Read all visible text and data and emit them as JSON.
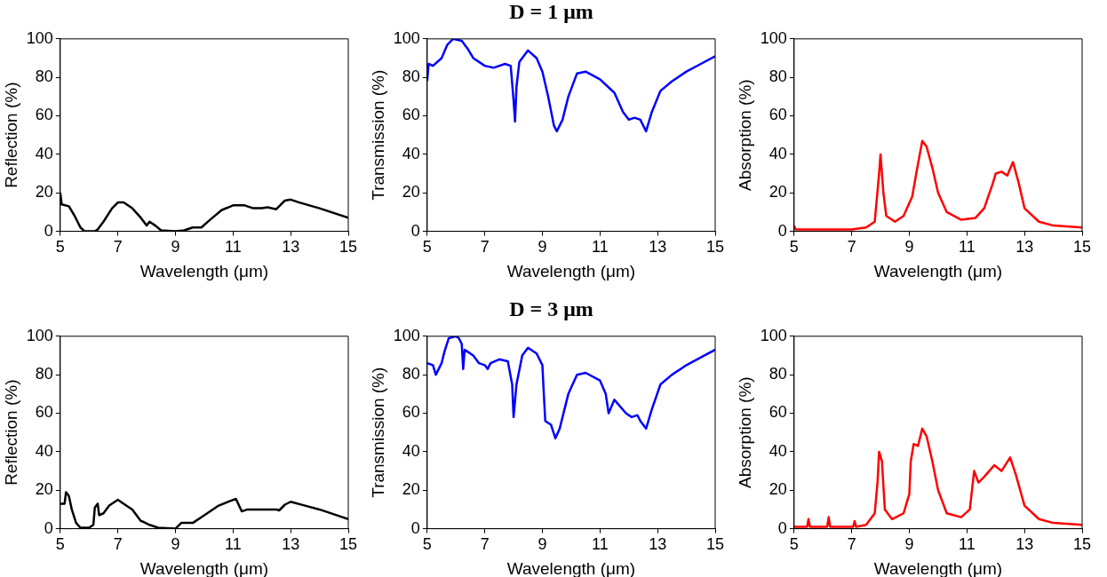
{
  "chart_data": [
    {
      "type": "line",
      "xlabel": "Wavelength (μm)",
      "ylabel": "Reflection (%)",
      "xlim": [
        5,
        15
      ],
      "ylim": [
        0,
        100
      ],
      "xticks": [
        5,
        7,
        9,
        11,
        13,
        15
      ],
      "yticks": [
        0,
        20,
        40,
        60,
        80,
        100
      ],
      "grid": false,
      "series": [
        {
          "color": "#000000",
          "x": [
            5,
            5.05,
            5.3,
            5.5,
            5.7,
            5.85,
            6.2,
            6.3,
            6.5,
            6.8,
            7.0,
            7.2,
            7.5,
            7.8,
            8.0,
            8.1,
            8.3,
            8.5,
            9.0,
            9.3,
            9.6,
            9.9,
            10.2,
            10.6,
            11.0,
            11.4,
            11.7,
            12.0,
            12.2,
            12.5,
            12.8,
            13.0,
            13.3,
            14,
            15
          ],
          "values": [
            20,
            14,
            13,
            8,
            2,
            0,
            0,
            1,
            5,
            12,
            15,
            15,
            12,
            7,
            3,
            5,
            3,
            0.5,
            0,
            0.5,
            2,
            2,
            6,
            11,
            13.5,
            13.5,
            12,
            12,
            12.5,
            11.5,
            16,
            16.5,
            15,
            12,
            7
          ]
        }
      ]
    },
    {
      "type": "line",
      "title": "D = 1 μm",
      "xlabel": "Wavelength (μm)",
      "ylabel": "Transmission (%)",
      "xlim": [
        5,
        15
      ],
      "ylim": [
        0,
        100
      ],
      "xticks": [
        5,
        7,
        9,
        11,
        13,
        15
      ],
      "yticks": [
        0,
        20,
        40,
        60,
        80,
        100
      ],
      "grid": false,
      "series": [
        {
          "color": "#0000ff",
          "x": [
            5,
            5.05,
            5.2,
            5.5,
            5.7,
            5.9,
            6.2,
            6.4,
            6.6,
            7.0,
            7.3,
            7.7,
            7.9,
            8.0,
            8.05,
            8.1,
            8.2,
            8.5,
            8.8,
            9.0,
            9.2,
            9.4,
            9.5,
            9.7,
            9.9,
            10.2,
            10.5,
            11.0,
            11.5,
            11.8,
            12.0,
            12.2,
            12.4,
            12.6,
            12.8,
            13.1,
            13.5,
            14.0,
            14.5,
            15
          ],
          "values": [
            78,
            87,
            86,
            90,
            97,
            100,
            99,
            95,
            90,
            86,
            85,
            87,
            86,
            68,
            57,
            75,
            88,
            94,
            90,
            83,
            70,
            55,
            52,
            58,
            70,
            82,
            83,
            79,
            72,
            62,
            58,
            59,
            58,
            52,
            62,
            73,
            78,
            83,
            87,
            91
          ]
        }
      ]
    },
    {
      "type": "line",
      "xlabel": "Wavelength (μm)",
      "ylabel": "Absorption (%)",
      "xlim": [
        5,
        15
      ],
      "ylim": [
        0,
        100
      ],
      "xticks": [
        5,
        7,
        9,
        11,
        13,
        15
      ],
      "yticks": [
        0,
        20,
        40,
        60,
        80,
        100
      ],
      "grid": false,
      "series": [
        {
          "color": "#ff0000",
          "x": [
            5,
            5.05,
            6,
            7,
            7.5,
            7.8,
            7.95,
            8.0,
            8.05,
            8.1,
            8.2,
            8.5,
            8.8,
            9.1,
            9.3,
            9.45,
            9.6,
            9.8,
            10,
            10.3,
            10.8,
            11.3,
            11.6,
            11.9,
            12.0,
            12.2,
            12.4,
            12.6,
            12.8,
            13.0,
            13.5,
            14,
            15
          ],
          "values": [
            3,
            1,
            1,
            1,
            2,
            5,
            30,
            40,
            30,
            20,
            8,
            5,
            8,
            18,
            35,
            47,
            44,
            33,
            20,
            10,
            6,
            7,
            12,
            25,
            30,
            31,
            29,
            36,
            25,
            12,
            5,
            3,
            2
          ]
        }
      ]
    },
    {
      "type": "line",
      "xlabel": "Wavelength (μm)",
      "ylabel": "Reflection (%)",
      "xlim": [
        5,
        15
      ],
      "ylim": [
        0,
        100
      ],
      "xticks": [
        5,
        7,
        9,
        11,
        13,
        15
      ],
      "yticks": [
        0,
        20,
        40,
        60,
        80,
        100
      ],
      "grid": false,
      "series": [
        {
          "color": "#000000",
          "x": [
            5,
            5.15,
            5.2,
            5.3,
            5.4,
            5.55,
            5.7,
            6.0,
            6.15,
            6.2,
            6.3,
            6.35,
            6.5,
            6.7,
            7.0,
            7.2,
            7.5,
            7.8,
            7.9,
            8.1,
            8.4,
            9.0,
            9.2,
            9.6,
            10,
            10.5,
            11.0,
            11.1,
            11.3,
            11.5,
            12.0,
            12.5,
            12.6,
            12.8,
            13.0,
            13.5,
            14,
            15
          ],
          "values": [
            13,
            13,
            19,
            17,
            10,
            3,
            0.5,
            0.5,
            2,
            11,
            13,
            7,
            8,
            12,
            15,
            13,
            10,
            4,
            3.5,
            2,
            0.5,
            0,
            3,
            3,
            7,
            12,
            15,
            15.5,
            9,
            10,
            10,
            10,
            9.5,
            12.5,
            14,
            12,
            10,
            5
          ]
        }
      ]
    },
    {
      "type": "line",
      "title": "D = 3 μm",
      "xlabel": "Wavelength (μm)",
      "ylabel": "Transmission (%)",
      "xlim": [
        5,
        15
      ],
      "ylim": [
        0,
        100
      ],
      "xticks": [
        5,
        7,
        9,
        11,
        13,
        15
      ],
      "yticks": [
        0,
        20,
        40,
        60,
        80,
        100
      ],
      "grid": false,
      "series": [
        {
          "color": "#0000ff",
          "x": [
            5,
            5.2,
            5.3,
            5.5,
            5.6,
            5.75,
            6.0,
            6.1,
            6.2,
            6.25,
            6.3,
            6.4,
            6.6,
            6.8,
            7.0,
            7.1,
            7.2,
            7.5,
            7.8,
            7.95,
            8.0,
            8.1,
            8.3,
            8.5,
            8.8,
            9.0,
            9.05,
            9.1,
            9.3,
            9.45,
            9.6,
            9.9,
            10.2,
            10.5,
            11.0,
            11.2,
            11.3,
            11.5,
            11.9,
            12.1,
            12.3,
            12.4,
            12.6,
            12.8,
            13.1,
            13.5,
            14,
            14.5,
            15
          ],
          "values": [
            86,
            85,
            80,
            86,
            92,
            99,
            100,
            99,
            96,
            83,
            93,
            92,
            90,
            86,
            85,
            83,
            86,
            88,
            87,
            75,
            58,
            75,
            90,
            94,
            91,
            85,
            70,
            56,
            54,
            47,
            52,
            70,
            80,
            81,
            77,
            70,
            60,
            67,
            60,
            58,
            59,
            56,
            52,
            62,
            75,
            80,
            85,
            89,
            93
          ]
        }
      ]
    },
    {
      "type": "line",
      "xlabel": "Wavelength (μm)",
      "ylabel": "Absorption (%)",
      "xlim": [
        5,
        15
      ],
      "ylim": [
        0,
        100
      ],
      "xticks": [
        5,
        7,
        9,
        11,
        13,
        15
      ],
      "yticks": [
        0,
        20,
        40,
        60,
        80,
        100
      ],
      "grid": false,
      "series": [
        {
          "color": "#ff0000",
          "x": [
            5,
            5.45,
            5.5,
            5.55,
            6.15,
            6.2,
            6.25,
            7.05,
            7.1,
            7.15,
            7.5,
            7.8,
            7.9,
            7.95,
            8.05,
            8.15,
            8.4,
            8.8,
            9.0,
            9.05,
            9.15,
            9.3,
            9.45,
            9.6,
            9.8,
            10.0,
            10.3,
            10.8,
            11.1,
            11.25,
            11.4,
            11.6,
            11.95,
            12.2,
            12.5,
            12.7,
            13.0,
            13.5,
            14,
            15
          ],
          "values": [
            1,
            1,
            5,
            1,
            1,
            6,
            1,
            1,
            4,
            1,
            2,
            8,
            25,
            40,
            35,
            10,
            5,
            8,
            18,
            35,
            44,
            43,
            52,
            48,
            35,
            20,
            8,
            6,
            10,
            30,
            24,
            27,
            33,
            30,
            37,
            28,
            12,
            5,
            3,
            2
          ]
        }
      ]
    }
  ]
}
